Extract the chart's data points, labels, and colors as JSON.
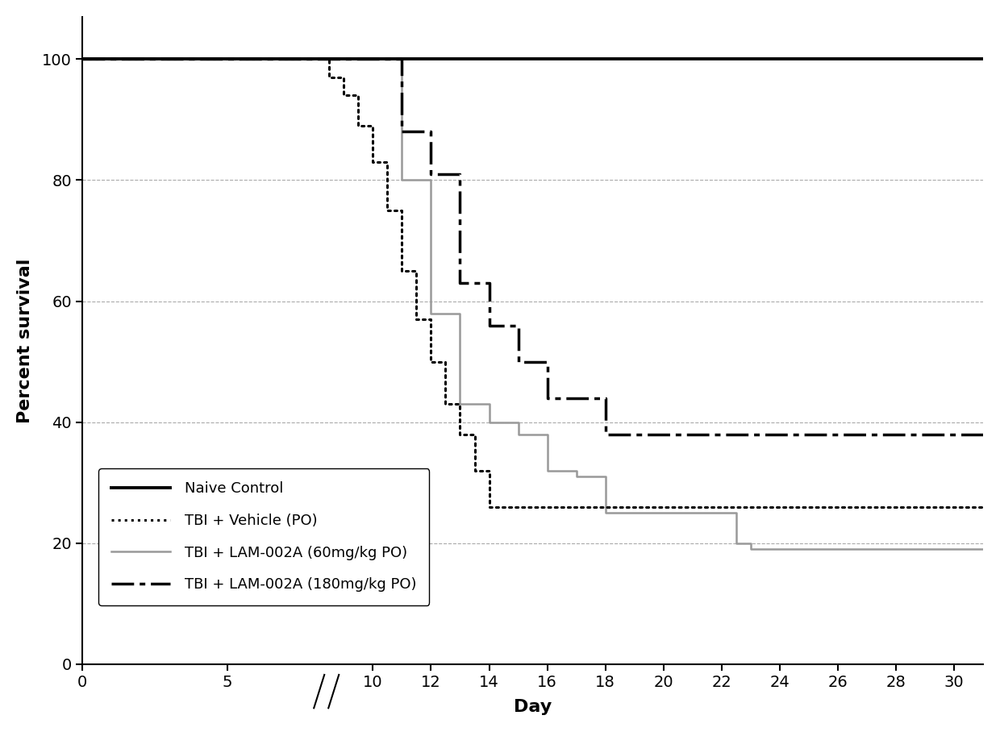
{
  "naive_control": {
    "x": [
      0,
      31
    ],
    "y": [
      100,
      100
    ],
    "color": "#000000",
    "linestyle": "solid",
    "linewidth": 2.8,
    "label": "Naive Control"
  },
  "tbi_vehicle": {
    "x": [
      0,
      8.5,
      8.5,
      9,
      9,
      9.5,
      9.5,
      10,
      10,
      10.5,
      10.5,
      11,
      11,
      11.5,
      11.5,
      12,
      12,
      12.5,
      12.5,
      13,
      13,
      13.5,
      13.5,
      14,
      14,
      16,
      16,
      18,
      18,
      31
    ],
    "y": [
      100,
      100,
      97,
      97,
      94,
      94,
      89,
      89,
      83,
      83,
      75,
      75,
      65,
      65,
      57,
      57,
      50,
      50,
      43,
      43,
      38,
      38,
      32,
      32,
      26,
      26,
      26,
      26,
      26,
      26
    ],
    "color": "#000000",
    "linewidth": 2.2,
    "label": "TBI + Vehicle (PO)"
  },
  "tbi_lam60": {
    "x": [
      0,
      11,
      11,
      12,
      12,
      13,
      13,
      14,
      14,
      15,
      15,
      16,
      16,
      17,
      17,
      18,
      18,
      22.5,
      22.5,
      23,
      23,
      31
    ],
    "y": [
      100,
      100,
      80,
      80,
      58,
      58,
      43,
      43,
      40,
      40,
      38,
      38,
      32,
      32,
      31,
      31,
      25,
      25,
      20,
      20,
      19,
      19
    ],
    "color": "#999999",
    "linewidth": 1.8,
    "label": "TBI + LAM-002A (60mg/kg PO)"
  },
  "tbi_lam180": {
    "x": [
      0,
      11,
      11,
      12,
      12,
      13,
      13,
      14,
      14,
      15,
      15,
      16,
      16,
      17,
      17,
      18,
      18,
      22,
      22,
      31
    ],
    "y": [
      100,
      100,
      88,
      88,
      81,
      81,
      63,
      63,
      56,
      56,
      50,
      50,
      44,
      44,
      44,
      44,
      38,
      38,
      38,
      38
    ],
    "color": "#000000",
    "linewidth": 2.5,
    "label": "TBI + LAM-002A (180mg/kg PO)"
  },
  "xlabel": "Day",
  "ylabel": "Percent survival",
  "xlim": [
    0,
    31
  ],
  "ylim": [
    0,
    107
  ],
  "xticks": [
    0,
    5,
    10,
    12,
    14,
    16,
    18,
    20,
    22,
    24,
    26,
    28,
    30
  ],
  "yticks": [
    0,
    20,
    40,
    60,
    80,
    100
  ],
  "grid_color": "#aaaaaa",
  "background_color": "#ffffff",
  "break_x1": 8.15,
  "break_x2": 8.65
}
